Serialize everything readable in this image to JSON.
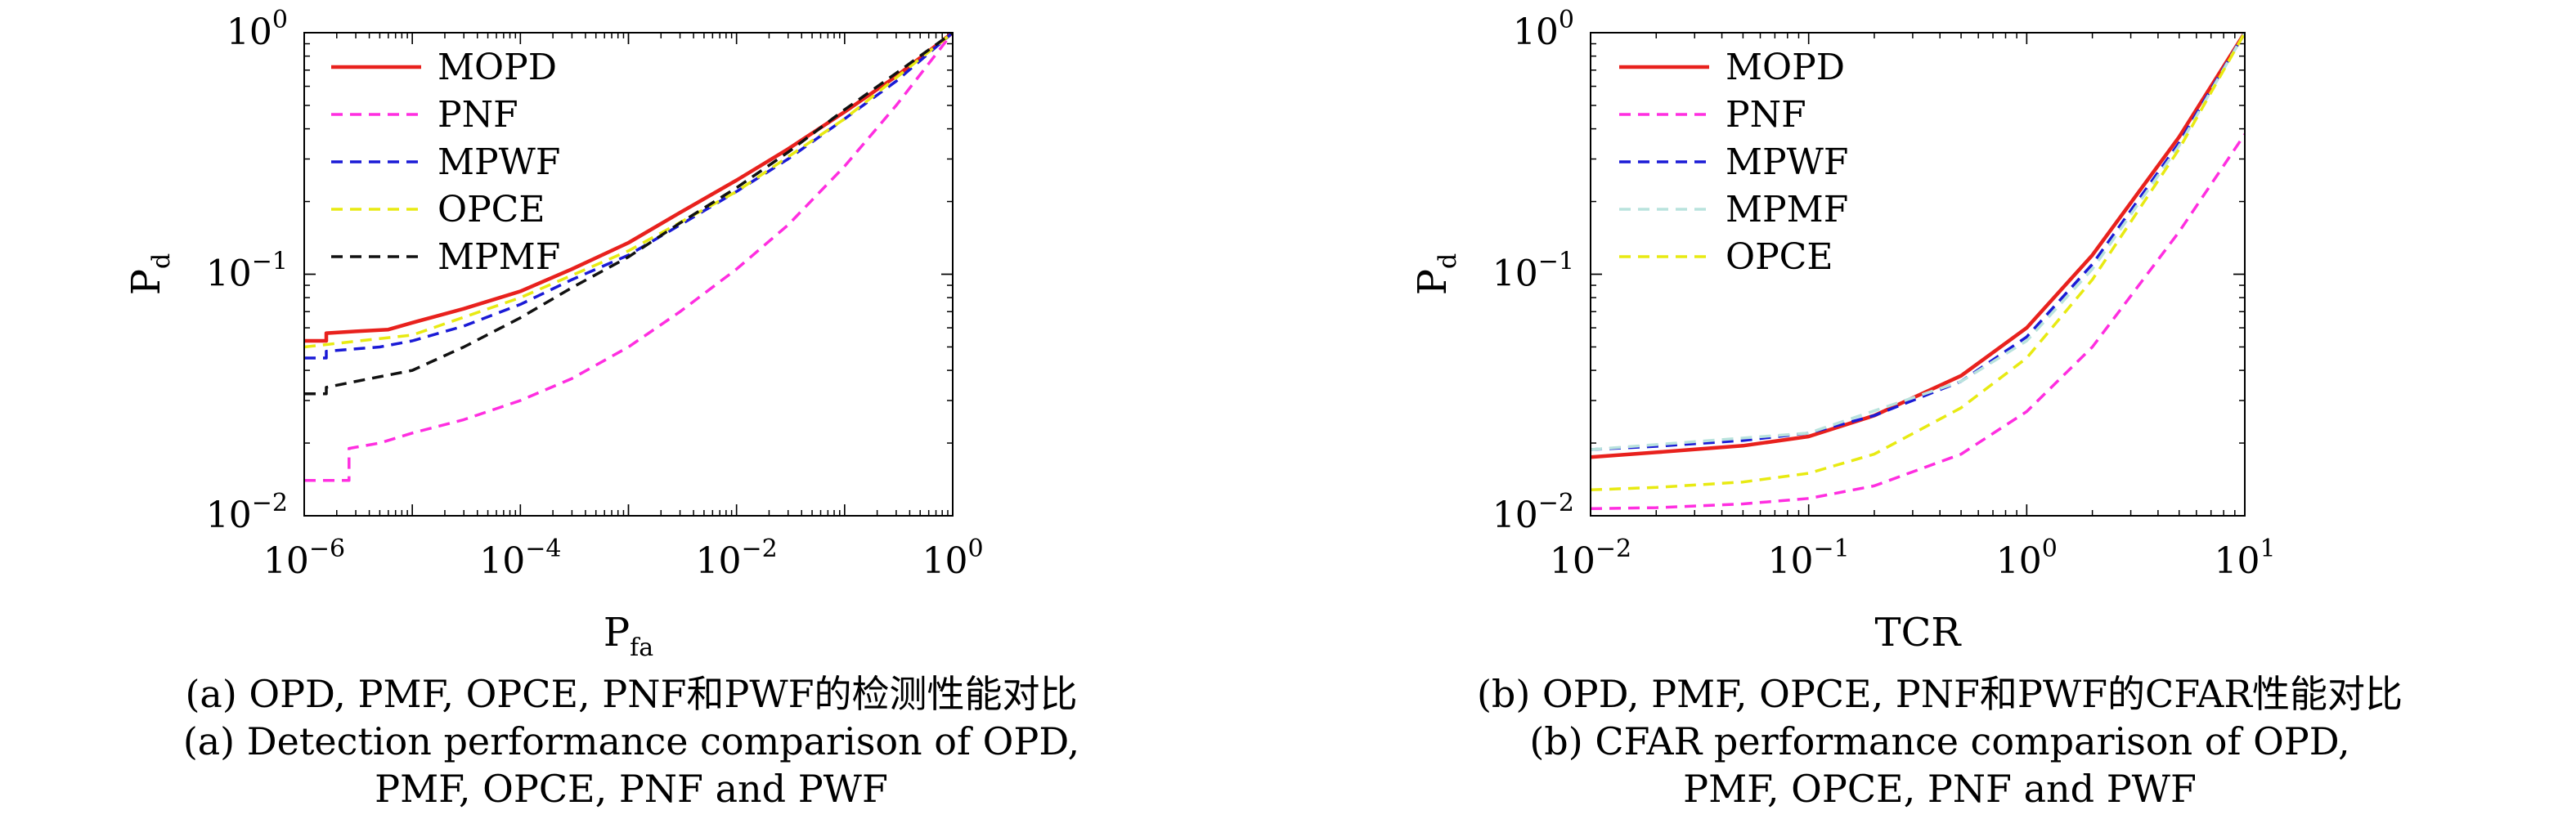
{
  "chart_data": [
    {
      "type": "line",
      "panel": "a",
      "xlabel": "P",
      "xlabel_sub": "fa",
      "ylabel": "P",
      "ylabel_sub": "d",
      "xscale": "log",
      "yscale": "log",
      "xlim": [
        1e-06,
        1
      ],
      "ylim": [
        0.01,
        1
      ],
      "xticks": [
        {
          "base": "10",
          "exp": "−6"
        },
        {
          "base": "10",
          "exp": "−4"
        },
        {
          "base": "10",
          "exp": "−2"
        },
        {
          "base": "10",
          "exp": "0"
        }
      ],
      "yticks": [
        {
          "base": "10",
          "exp": "−2"
        },
        {
          "base": "10",
          "exp": "−1"
        },
        {
          "base": "10",
          "exp": "0"
        }
      ],
      "legend_position": "top-left",
      "series": [
        {
          "name": "MOPD",
          "color": "#e8211d",
          "dash": "solid",
          "x": [
            1e-06,
            1.6e-06,
            1.6e-06,
            3e-06,
            6e-06,
            1e-05,
            3e-05,
            0.0001,
            0.0003,
            0.001,
            0.003,
            0.01,
            0.03,
            0.1,
            0.3,
            1
          ],
          "y": [
            0.053,
            0.053,
            0.057,
            0.058,
            0.059,
            0.063,
            0.072,
            0.085,
            0.105,
            0.135,
            0.18,
            0.245,
            0.33,
            0.47,
            0.66,
            1.0
          ]
        },
        {
          "name": "PNF",
          "color": "#ff2ee0",
          "dash": "dashed",
          "x": [
            1e-06,
            2.6e-06,
            2.6e-06,
            5e-06,
            1e-05,
            3e-05,
            0.0001,
            0.0003,
            0.001,
            0.003,
            0.01,
            0.03,
            0.1,
            0.3,
            1
          ],
          "y": [
            0.014,
            0.014,
            0.019,
            0.02,
            0.022,
            0.025,
            0.03,
            0.037,
            0.05,
            0.07,
            0.105,
            0.16,
            0.28,
            0.5,
            1.0
          ]
        },
        {
          "name": "MPWF",
          "color": "#1a1ad6",
          "dash": "dashed",
          "x": [
            1e-06,
            1.6e-06,
            1.6e-06,
            5e-06,
            1e-05,
            3e-05,
            0.0001,
            0.0003,
            0.001,
            0.003,
            0.01,
            0.03,
            0.1,
            0.3,
            1
          ],
          "y": [
            0.045,
            0.045,
            0.048,
            0.05,
            0.053,
            0.061,
            0.075,
            0.095,
            0.12,
            0.16,
            0.22,
            0.3,
            0.44,
            0.63,
            1.0
          ]
        },
        {
          "name": "OPCE",
          "color": "#e8ea12",
          "dash": "dashed",
          "x": [
            1e-06,
            1e-05,
            0.0001,
            0.001,
            0.01,
            0.1,
            1
          ],
          "y": [
            0.05,
            0.056,
            0.08,
            0.125,
            0.22,
            0.44,
            1.0
          ]
        },
        {
          "name": "MPMF",
          "color": "#111111",
          "dash": "dashed",
          "x": [
            1e-06,
            1.6e-06,
            1.6e-06,
            3e-06,
            1e-05,
            3e-05,
            0.0001,
            0.0003,
            0.001,
            0.003,
            0.01,
            0.03,
            0.1,
            0.3,
            1
          ],
          "y": [
            0.032,
            0.032,
            0.034,
            0.036,
            0.04,
            0.05,
            0.066,
            0.088,
            0.118,
            0.163,
            0.228,
            0.32,
            0.48,
            0.68,
            1.0
          ]
        }
      ]
    },
    {
      "type": "line",
      "panel": "b",
      "xlabel": "TCR",
      "xlabel_sub": "",
      "ylabel": "P",
      "ylabel_sub": "d",
      "xscale": "log",
      "yscale": "log",
      "xlim": [
        0.01,
        10
      ],
      "ylim": [
        0.01,
        1
      ],
      "xticks": [
        {
          "base": "10",
          "exp": "−2"
        },
        {
          "base": "10",
          "exp": "−1"
        },
        {
          "base": "10",
          "exp": "0"
        },
        {
          "base": "10",
          "exp": "1"
        }
      ],
      "yticks": [
        {
          "base": "10",
          "exp": "−2"
        },
        {
          "base": "10",
          "exp": "−1"
        },
        {
          "base": "10",
          "exp": "0"
        }
      ],
      "legend_position": "top-left",
      "series": [
        {
          "name": "MOPD",
          "color": "#e8211d",
          "dash": "solid",
          "x": [
            0.01,
            0.02,
            0.05,
            0.1,
            0.2,
            0.5,
            1,
            2,
            5,
            10
          ],
          "y": [
            0.0175,
            0.0183,
            0.0195,
            0.0213,
            0.026,
            0.038,
            0.06,
            0.12,
            0.37,
            1.0
          ]
        },
        {
          "name": "PNF",
          "color": "#ff2ee0",
          "dash": "dashed",
          "x": [
            0.01,
            0.02,
            0.05,
            0.1,
            0.2,
            0.5,
            1,
            2,
            5,
            10
          ],
          "y": [
            0.0107,
            0.0108,
            0.0112,
            0.0118,
            0.0133,
            0.018,
            0.027,
            0.05,
            0.15,
            0.38
          ]
        },
        {
          "name": "MPWF",
          "color": "#1a1ad6",
          "dash": "dashed",
          "x": [
            0.01,
            0.02,
            0.05,
            0.1,
            0.2,
            0.5,
            1,
            2,
            5,
            10
          ],
          "y": [
            0.0188,
            0.0194,
            0.0205,
            0.022,
            0.026,
            0.036,
            0.055,
            0.11,
            0.35,
            1.0
          ]
        },
        {
          "name": "MPMF",
          "color": "#b9e3dd",
          "dash": "dashed",
          "x": [
            0.01,
            0.1,
            0.5,
            1,
            2,
            5,
            10
          ],
          "y": [
            0.0188,
            0.022,
            0.036,
            0.053,
            0.105,
            0.34,
            1.0
          ]
        },
        {
          "name": "OPCE",
          "color": "#e8ea12",
          "dash": "dashed",
          "x": [
            0.01,
            0.02,
            0.05,
            0.1,
            0.2,
            0.5,
            1,
            2,
            5,
            10
          ],
          "y": [
            0.0128,
            0.0131,
            0.0138,
            0.015,
            0.018,
            0.028,
            0.045,
            0.095,
            0.33,
            1.0
          ]
        }
      ]
    }
  ],
  "captions": {
    "a": {
      "zh": "(a) OPD, PMF, OPCE, PNF和PWF的检测性能对比",
      "en1": "(a) Detection performance comparison of OPD,",
      "en2": "PMF, OPCE, PNF and PWF"
    },
    "b": {
      "zh": "(b) OPD, PMF, OPCE, PNF和PWF的CFAR性能对比",
      "en1": "(b) CFAR performance comparison of OPD,",
      "en2": "PMF, OPCE, PNF and PWF"
    }
  }
}
